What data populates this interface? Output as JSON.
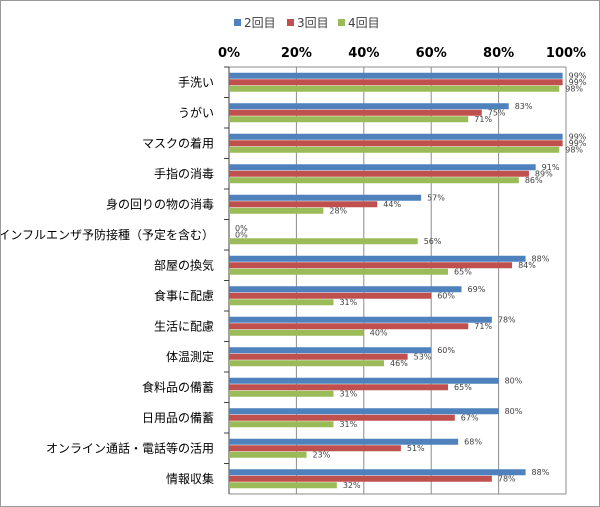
{
  "chart_data": {
    "type": "bar",
    "orientation": "horizontal",
    "categories": [
      "手洗い",
      "うがい",
      "マスクの着用",
      "手指の消毒",
      "身の回りの物の消毒",
      "インフルエンザ予防接種（予定を含む）",
      "部屋の換気",
      "食事に配慮",
      "生活に配慮",
      "体温測定",
      "食料品の備蓄",
      "日用品の備蓄",
      "オンライン通話・電話等の活用",
      "情報収集"
    ],
    "series": [
      {
        "name": "2回目",
        "color": "#4F81BD",
        "values": [
          99,
          83,
          99,
          91,
          57,
          0,
          88,
          69,
          78,
          60,
          80,
          80,
          68,
          88
        ]
      },
      {
        "name": "3回目",
        "color": "#C0504D",
        "values": [
          99,
          75,
          99,
          89,
          44,
          0,
          84,
          60,
          71,
          53,
          65,
          67,
          51,
          78
        ]
      },
      {
        "name": "4回目",
        "color": "#9BBB59",
        "values": [
          98,
          71,
          98,
          86,
          28,
          56,
          65,
          31,
          40,
          46,
          31,
          31,
          23,
          32
        ]
      }
    ],
    "xticks": [
      "0%",
      "20%",
      "40%",
      "60%",
      "80%",
      "100%"
    ],
    "xlim": [
      0,
      100
    ],
    "value_suffix": "%",
    "grid": true,
    "legend_position": "top"
  }
}
